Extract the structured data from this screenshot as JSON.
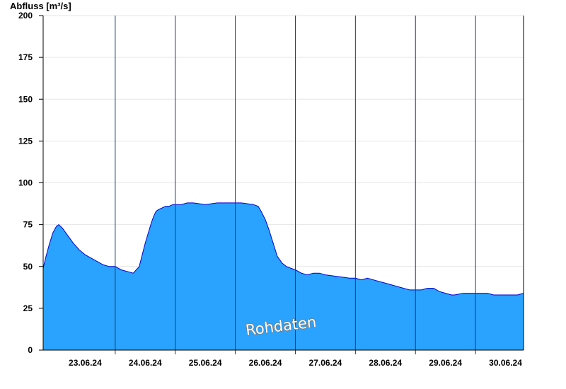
{
  "chart_data": {
    "type": "area",
    "title": "",
    "xlabel": "",
    "ylabel": "Abfluss [m³/s]",
    "ylim": [
      0,
      200
    ],
    "yticks": [
      0,
      25,
      50,
      75,
      100,
      125,
      150,
      175,
      200
    ],
    "xlim_days": [
      22.3,
      30.3
    ],
    "day_separators": [
      23.5,
      24.5,
      25.5,
      26.5,
      27.5,
      28.5,
      29.5
    ],
    "x_tick_labels": [
      "23.06.24",
      "24.06.24",
      "25.06.24",
      "26.06.24",
      "27.06.24",
      "28.06.24",
      "29.06.24",
      "30.06.24"
    ],
    "x_tick_days": [
      23,
      24,
      25,
      26,
      27,
      28,
      29,
      30
    ],
    "grid": true,
    "fill_color": "#29a3ff",
    "line_color": "#0000cc",
    "watermark": "Rohdaten",
    "series": [
      {
        "x": [
          22.3,
          22.34,
          22.4,
          22.46,
          22.52,
          22.56,
          22.62,
          22.7,
          22.8,
          22.9,
          23.0,
          23.1,
          23.2,
          23.3,
          23.4,
          23.5,
          23.6,
          23.7,
          23.8,
          23.9,
          24.0,
          24.1,
          24.14,
          24.18,
          24.22,
          24.28,
          24.34,
          24.4,
          24.46,
          24.5,
          24.6,
          24.7,
          24.8,
          25.0,
          25.2,
          25.4,
          25.6,
          25.8,
          25.88,
          25.93,
          26.0,
          26.06,
          26.13,
          26.2,
          26.28,
          26.35,
          26.42,
          26.5,
          26.6,
          26.7,
          26.8,
          26.9,
          27.0,
          27.2,
          27.4,
          27.5,
          27.6,
          27.7,
          27.8,
          28.0,
          28.2,
          28.4,
          28.5,
          28.6,
          28.7,
          28.8,
          28.9,
          29.0,
          29.1,
          29.15,
          29.3,
          29.5,
          29.7,
          29.8,
          30.0,
          30.2,
          30.3
        ],
        "values": [
          49,
          55,
          63,
          70,
          74,
          75,
          73,
          69,
          64,
          60,
          57,
          55,
          53,
          51,
          50,
          50,
          48,
          47,
          46,
          50,
          64,
          76,
          80,
          83,
          84,
          85,
          86,
          86,
          87,
          87,
          87,
          88,
          88,
          87,
          88,
          88,
          88,
          87,
          86,
          83,
          78,
          72,
          64,
          56,
          52,
          50,
          49,
          48,
          46,
          45,
          46,
          46,
          45,
          44,
          43,
          43,
          42,
          43,
          42,
          40,
          38,
          36,
          36,
          36,
          37,
          37,
          35,
          34,
          33,
          33,
          34,
          34,
          34,
          33,
          33,
          33,
          34
        ]
      }
    ]
  }
}
